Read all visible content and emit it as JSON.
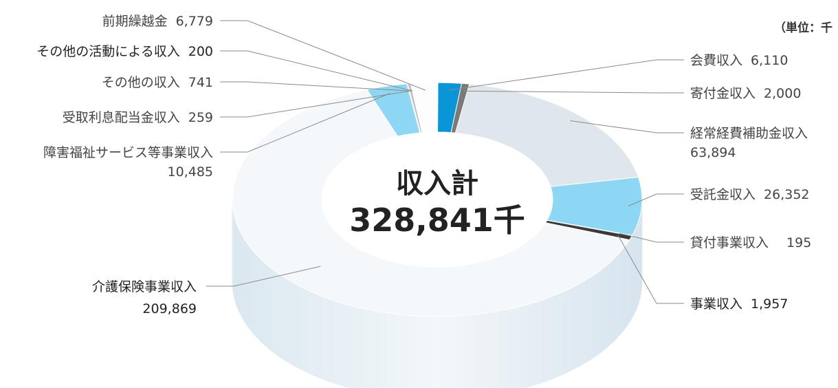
{
  "unit_note": "（単位：千",
  "chart_data": {
    "type": "pie",
    "center_label": "収入計",
    "center_value": "328,841千",
    "slices": [
      {
        "label": "会費収入",
        "display": "6,110",
        "value": 6110,
        "color": "#0a96d6"
      },
      {
        "label": "寄付金収入",
        "display": "2,000",
        "value": 2000,
        "color": "#7a7a7a"
      },
      {
        "label": "経常経費補助金収入",
        "display": "63,894",
        "value": 63894,
        "color": "#dfe6ec"
      },
      {
        "label": "受託金収入",
        "display": "26,352",
        "value": 26352,
        "color": "#8dd6f4"
      },
      {
        "label": "貸付事業収入",
        "display": "195",
        "value": 195,
        "color": "#8a8a8a"
      },
      {
        "label": "事業収入",
        "display": "1,957",
        "value": 1957,
        "color": "#3a3a3a"
      },
      {
        "label": "介護保険事業収入",
        "display": "209,869",
        "value": 209869,
        "color": "#f4f8fb"
      },
      {
        "label": "障害福祉サービス等事業収入",
        "display": "10,485",
        "value": 10485,
        "color": "#8dd6f4"
      },
      {
        "label": "受取利息配当金収入",
        "display": "259",
        "value": 259,
        "color": "#aaaaaa"
      },
      {
        "label": "その他の収入",
        "display": "741",
        "value": 741,
        "color": "#c0c0c0"
      },
      {
        "label": "その他の活動による収入",
        "display": "200",
        "value": 200,
        "color": "#999999"
      },
      {
        "label": "前期繰越金",
        "display": "6,779",
        "value": 6779,
        "color": "#fdfdfd"
      }
    ]
  }
}
